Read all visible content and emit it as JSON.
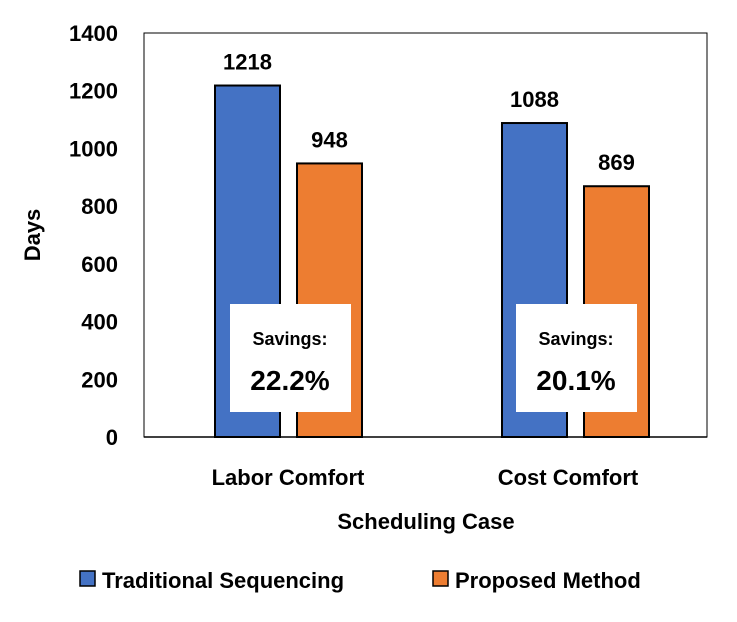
{
  "chart_data": {
    "type": "bar",
    "title": "",
    "xlabel": "Scheduling Case",
    "ylabel": "Days",
    "ylim": [
      0,
      1400
    ],
    "yticks": [
      "0",
      "200",
      "400",
      "600",
      "800",
      "1000",
      "1200",
      "1400"
    ],
    "grid": false,
    "legend_position": "bottom",
    "categories": [
      "Labor Comfort",
      "Cost Comfort"
    ],
    "series": [
      {
        "name": "Traditional Sequencing",
        "values": [
          1218,
          1088
        ],
        "labels": [
          "1218",
          "1088"
        ],
        "color": "#4472C4"
      },
      {
        "name": "Proposed Method",
        "values": [
          948,
          869
        ],
        "labels": [
          "948",
          "869"
        ],
        "color": "#ED7D31"
      }
    ],
    "annotations": [
      {
        "label": "Savings:",
        "value": "22.2%"
      },
      {
        "label": "Savings:",
        "value": "20.1%"
      }
    ]
  }
}
